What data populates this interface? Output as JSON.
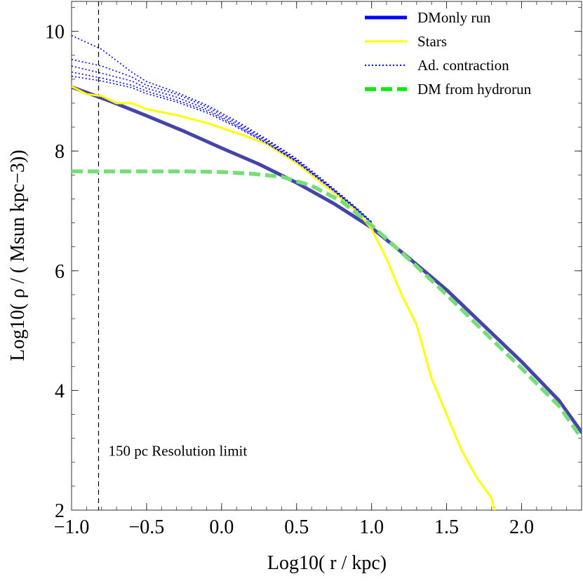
{
  "chart_data": {
    "type": "line",
    "title": "",
    "xlabel": "Log10( r / kpc)",
    "ylabel": "Log10( ρ / ( Msun kpc−3))",
    "xlim": [
      -1.0,
      2.4
    ],
    "ylim": [
      2,
      10.5
    ],
    "grid": false,
    "legend_position": "top-right",
    "x_ticks": [
      "−1.0",
      "−0.5",
      "0.0",
      "0.5",
      "1.0",
      "1.5",
      "2.0"
    ],
    "x_tick_values": [
      -1.0,
      -0.5,
      0.0,
      0.5,
      1.0,
      1.5,
      2.0
    ],
    "y_ticks": [
      "2",
      "4",
      "6",
      "8",
      "10"
    ],
    "y_tick_values": [
      2,
      4,
      6,
      8,
      10
    ],
    "annotations": [
      {
        "text": "150 pc Resolution limit",
        "x": -0.82,
        "y": 3.0
      }
    ],
    "reference_lines": [
      {
        "orientation": "vertical",
        "x": -0.82,
        "style": "dashed"
      }
    ],
    "series": [
      {
        "name": "DMonly run",
        "color": "#4444aa",
        "legend_color": "#0000ff",
        "style": "solid",
        "x": [
          -1.0,
          -0.75,
          -0.5,
          -0.25,
          0.0,
          0.25,
          0.5,
          0.75,
          1.0,
          1.25,
          1.5,
          1.75,
          2.0,
          2.25,
          2.4
        ],
        "y": [
          9.07,
          8.84,
          8.59,
          8.33,
          8.05,
          7.78,
          7.47,
          7.12,
          6.72,
          6.21,
          5.68,
          5.08,
          4.48,
          3.83,
          3.3
        ]
      },
      {
        "name": "Stars",
        "color": "#ffff00",
        "legend_color": "#ffff00",
        "style": "solid",
        "x": [
          -1.0,
          -0.9,
          -0.8,
          -0.7,
          -0.6,
          -0.5,
          -0.3,
          -0.1,
          0.1,
          0.3,
          0.5,
          0.7,
          0.9,
          1.0,
          1.1,
          1.2,
          1.3,
          1.4,
          1.5,
          1.6,
          1.7,
          1.8,
          1.82
        ],
        "y": [
          9.08,
          8.95,
          8.92,
          8.8,
          8.8,
          8.7,
          8.6,
          8.47,
          8.3,
          8.12,
          7.8,
          7.4,
          7.0,
          6.7,
          6.2,
          5.6,
          5.1,
          4.2,
          3.6,
          3.0,
          2.55,
          2.2,
          2.0
        ]
      },
      {
        "name": "Ad. contraction",
        "color": "#0000ff",
        "legend_color": "#0000ff",
        "style": "dotted",
        "x": [
          -1.0,
          -0.8,
          -0.6,
          -0.5,
          -0.3,
          -0.1,
          0.1,
          0.3,
          0.5,
          0.7,
          0.9,
          1.0
        ],
        "y": [
          9.93,
          9.7,
          9.32,
          9.16,
          8.98,
          8.77,
          8.5,
          8.2,
          7.87,
          7.47,
          7.05,
          6.82
        ]
      },
      {
        "name": "",
        "color": "#0000ff",
        "style": "dotted",
        "x": [
          -1.0,
          -0.8,
          -0.6,
          -0.5,
          -0.3,
          -0.1,
          0.1,
          0.3,
          0.5,
          0.7,
          0.9,
          1.0
        ],
        "y": [
          9.53,
          9.42,
          9.24,
          9.1,
          8.95,
          8.74,
          8.47,
          8.18,
          7.86,
          7.46,
          7.04,
          6.81
        ]
      },
      {
        "name": "",
        "color": "#0000ff",
        "style": "dotted",
        "x": [
          -1.0,
          -0.8,
          -0.6,
          -0.5,
          -0.3,
          -0.1,
          0.1,
          0.3,
          0.5,
          0.7,
          0.9,
          1.0
        ],
        "y": [
          9.42,
          9.3,
          9.17,
          9.05,
          8.9,
          8.7,
          8.44,
          8.16,
          7.84,
          7.45,
          7.03,
          6.8
        ]
      },
      {
        "name": "",
        "color": "#0000ff",
        "style": "dotted",
        "x": [
          -1.0,
          -0.8,
          -0.6,
          -0.5,
          -0.3,
          -0.1,
          0.1,
          0.3,
          0.5,
          0.7,
          0.9,
          1.0
        ],
        "y": [
          9.32,
          9.22,
          9.1,
          9.0,
          8.85,
          8.67,
          8.42,
          8.14,
          7.83,
          7.44,
          7.03,
          6.8
        ]
      },
      {
        "name": "",
        "color": "#0000ff",
        "style": "dotted",
        "x": [
          -1.0,
          -0.8,
          -0.6,
          -0.5,
          -0.3,
          -0.1,
          0.1,
          0.3,
          0.5,
          0.7,
          0.9,
          1.0
        ],
        "y": [
          9.25,
          9.17,
          9.06,
          8.96,
          8.82,
          8.64,
          8.4,
          8.13,
          7.82,
          7.43,
          7.02,
          6.79
        ]
      },
      {
        "name": "DM from hydrorun",
        "color": "#77dd77",
        "legend_color": "#00ee00",
        "style": "dashed",
        "x": [
          -1.0,
          -0.75,
          -0.5,
          -0.25,
          0.0,
          0.2,
          0.4,
          0.6,
          0.8,
          1.0,
          1.25,
          1.5,
          1.75,
          2.0,
          2.25,
          2.4
        ],
        "y": [
          7.66,
          7.66,
          7.66,
          7.66,
          7.65,
          7.62,
          7.57,
          7.42,
          7.16,
          6.76,
          6.19,
          5.6,
          4.98,
          4.37,
          3.74,
          3.2
        ]
      }
    ]
  }
}
